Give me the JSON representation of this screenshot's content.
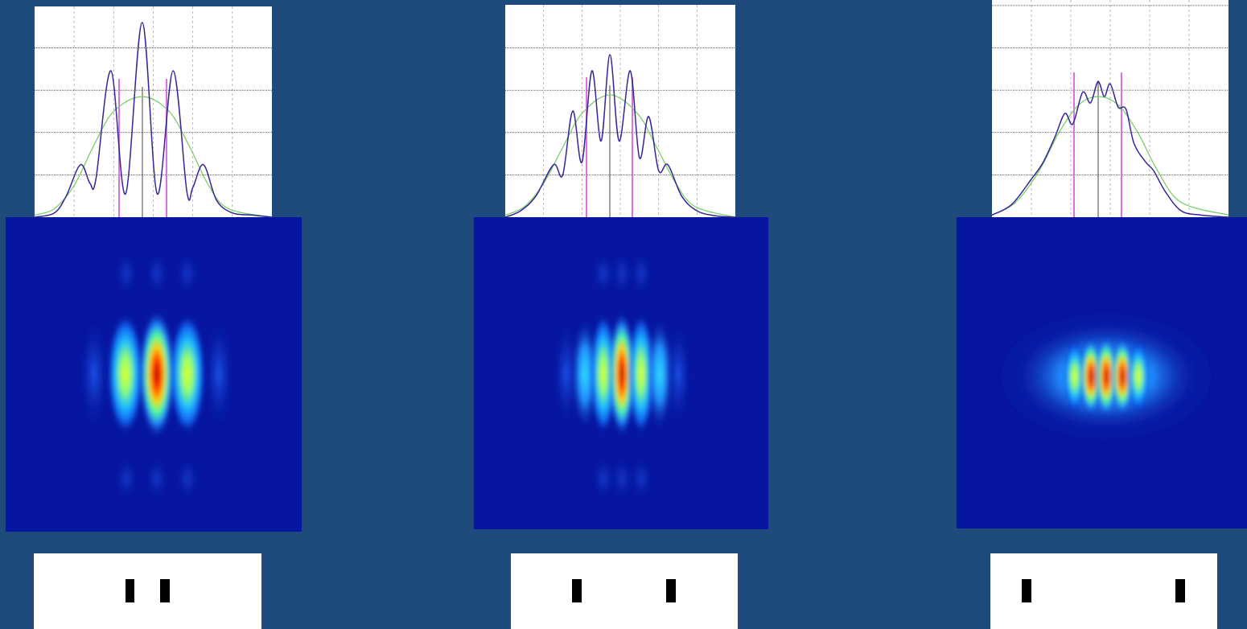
{
  "chart_data": [
    {
      "type": "line",
      "xlim": [
        0,
        6
      ],
      "ylim": [
        0,
        4.98
      ],
      "xticks": [
        1,
        2,
        3,
        4,
        5
      ],
      "yticks": [
        1,
        2,
        3,
        4
      ],
      "grid": true,
      "series": [
        {
          "color": "#35259a",
          "x": [
            0,
            0.5,
            0.8,
            1.16,
            1.4,
            1.55,
            1.93,
            2.3,
            2.72,
            3.1,
            3.5,
            3.85,
            4.0,
            4.27,
            4.6,
            5.0,
            5.5,
            6
          ],
          "values": [
            0,
            0.1,
            0.5,
            1.24,
            0.8,
            0.9,
            3.46,
            0.55,
            4.6,
            0.55,
            3.46,
            0.6,
            0.7,
            1.24,
            0.4,
            0.1,
            0.05,
            0
          ]
        },
        {
          "color": "#7ccf6a",
          "x": [
            0,
            0.5,
            1,
            1.5,
            2,
            2.72,
            3.4,
            3.9,
            4.4,
            4.9,
            6
          ],
          "values": [
            0.05,
            0.2,
            0.75,
            1.7,
            2.5,
            2.85,
            2.5,
            1.7,
            0.75,
            0.2,
            0
          ]
        }
      ]
    },
    {
      "type": "line",
      "xlim": [
        0,
        6
      ],
      "ylim": [
        0,
        5.02
      ],
      "xticks": [
        1,
        2,
        3,
        4,
        5
      ],
      "yticks": [
        1,
        2,
        3,
        4
      ],
      "grid": true,
      "series": [
        {
          "color": "#35259a",
          "x": [
            0,
            0.4,
            0.8,
            1.26,
            1.5,
            1.76,
            2.0,
            2.26,
            2.5,
            2.73,
            2.97,
            3.26,
            3.5,
            3.74,
            4.0,
            4.24,
            4.6,
            5.0,
            5.5,
            6
          ],
          "values": [
            0,
            0.15,
            0.5,
            1.24,
            1.0,
            2.51,
            1.3,
            3.46,
            1.8,
            3.84,
            1.8,
            3.46,
            1.4,
            2.38,
            1.1,
            1.24,
            0.5,
            0.15,
            0.03,
            0
          ]
        },
        {
          "color": "#7ccf6a",
          "x": [
            0,
            0.5,
            1,
            1.5,
            2,
            2.73,
            3.45,
            3.95,
            4.45,
            4.95,
            6
          ],
          "values": [
            0.05,
            0.25,
            0.8,
            1.65,
            2.45,
            2.89,
            2.45,
            1.65,
            0.8,
            0.25,
            0
          ]
        }
      ]
    },
    {
      "type": "line",
      "xlim": [
        0,
        6
      ],
      "ylim": [
        0,
        5.13
      ],
      "xticks": [
        1,
        2,
        3,
        4,
        5
      ],
      "yticks": [
        1,
        2,
        3,
        4,
        5
      ],
      "grid": true,
      "series": [
        {
          "color": "#35259a",
          "x": [
            0,
            0.5,
            1,
            1.3,
            1.6,
            1.85,
            2.05,
            2.3,
            2.5,
            2.69,
            2.85,
            3.0,
            3.2,
            3.4,
            3.6,
            3.9,
            4.1,
            4.4,
            4.8,
            5.3,
            6
          ],
          "values": [
            0.05,
            0.3,
            0.9,
            1.3,
            1.9,
            2.45,
            2.2,
            2.95,
            2.7,
            3.2,
            2.85,
            3.15,
            2.6,
            2.55,
            1.75,
            1.3,
            1.1,
            0.6,
            0.15,
            0.05,
            0
          ]
        },
        {
          "color": "#7ccf6a",
          "x": [
            0,
            0.6,
            1.2,
            1.7,
            2.2,
            2.69,
            3.2,
            3.7,
            4.2,
            4.8,
            6
          ],
          "values": [
            0.05,
            0.35,
            1.1,
            2.0,
            2.65,
            2.85,
            2.65,
            2.0,
            1.1,
            0.35,
            0.05
          ]
        }
      ]
    }
  ]
}
